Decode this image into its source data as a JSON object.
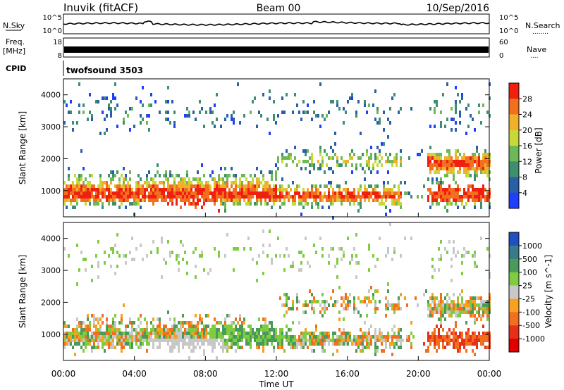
{
  "header": {
    "title": "Inuvik (fitACF)",
    "beam": "Beam 00",
    "date": "10/Sep/2016"
  },
  "labels": {
    "nsky": "N.Sky",
    "nsearch": "N.Search",
    "nsearch_dots": "........",
    "freq_line1": "Freq.",
    "freq_line2": "[MHz]",
    "nave": "Nave",
    "nave_dots": "....",
    "cpid": "CPID",
    "cpid_value": "twofsound 3503"
  },
  "strip_ticks": {
    "nsky_left": [
      "10^5",
      "10^0"
    ],
    "nsky_right": [
      "10^5",
      "10^0"
    ],
    "freq_left": [
      "18",
      "8"
    ],
    "nave_right": [
      "60",
      "0"
    ]
  },
  "chart_data": [
    {
      "type": "heatmap",
      "name": "power",
      "ylabel": "Slant Range [km]",
      "xlabel": "",
      "xlim": [
        0,
        24
      ],
      "ylim": [
        180,
        4500
      ],
      "yticks": [
        1000,
        2000,
        3000,
        4000
      ],
      "colorbar": {
        "label": "Power [dB]",
        "ticks": [
          4,
          8,
          12,
          16,
          20,
          24,
          28
        ],
        "colors": [
          "#1f3fff",
          "#2a5fa8",
          "#3e8f6e",
          "#6fb85a",
          "#c8d838",
          "#f0b028",
          "#f07020",
          "#f02010"
        ]
      }
    },
    {
      "type": "heatmap",
      "name": "velocity",
      "ylabel": "Slant Range [km]",
      "xlabel": "Time UT",
      "xlim": [
        0,
        24
      ],
      "ylim": [
        180,
        4500
      ],
      "xticks": [
        "00:00",
        "04:00",
        "08:00",
        "12:00",
        "16:00",
        "20:00",
        "00:00"
      ],
      "yticks": [
        1000,
        2000,
        3000,
        4000
      ],
      "colorbar": {
        "label": "Velocity [m s^-1]",
        "ticks": [
          1000,
          500,
          100,
          25,
          -25,
          -100,
          -500,
          -1000
        ],
        "colors": [
          "#2050c0",
          "#3a7a8a",
          "#4a9a5a",
          "#80cc40",
          "#c8c8c8",
          "#f8a020",
          "#f07020",
          "#e83018",
          "#e00000"
        ]
      }
    }
  ]
}
